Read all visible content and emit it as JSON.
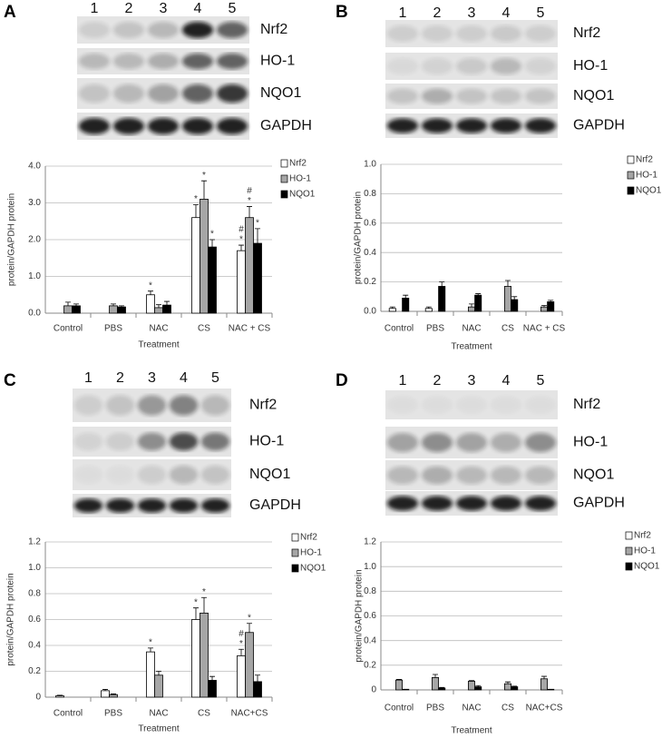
{
  "chart_data": [
    {
      "type": "bar",
      "panel": "A",
      "lanes": [
        "1",
        "2",
        "3",
        "4",
        "5"
      ],
      "blots": [
        "Nrf2",
        "HO-1",
        "NQO1",
        "GAPDH"
      ],
      "x_label": "Treatment",
      "y_label": "protein/GAPDH protein",
      "categories": [
        "Control",
        "PBS",
        "NAC",
        "CS",
        "NAC + CS"
      ],
      "series": [
        {
          "name": "Nrf2",
          "color": "#ffffff",
          "values": [
            0,
            0,
            0.5,
            2.6,
            1.7
          ],
          "errors": [
            0,
            0,
            0.1,
            0.35,
            0.15
          ],
          "annotations": [
            null,
            null,
            [
              "*"
            ],
            [
              "*"
            ],
            [
              "#",
              "*"
            ]
          ]
        },
        {
          "name": "HO-1",
          "color": "#a6a6a6",
          "values": [
            0.2,
            0.2,
            0.15,
            3.1,
            2.6
          ],
          "errors": [
            0.1,
            0.05,
            0.08,
            0.5,
            0.3
          ],
          "annotations": [
            null,
            null,
            null,
            [
              "*"
            ],
            [
              "#",
              "*"
            ]
          ]
        },
        {
          "name": "NQO1",
          "color": "#000000",
          "values": [
            0.2,
            0.17,
            0.22,
            1.8,
            1.9
          ],
          "errors": [
            0.05,
            0.03,
            0.1,
            0.2,
            0.4
          ],
          "annotations": [
            null,
            null,
            null,
            [
              "*"
            ],
            [
              "*"
            ]
          ]
        }
      ],
      "ylim": [
        0,
        4
      ],
      "yticks": [
        {
          "value": 0,
          "label": "0.0"
        },
        {
          "value": 1,
          "label": "1.0"
        },
        {
          "value": 2,
          "label": "2.0"
        },
        {
          "value": 3,
          "label": "3.0"
        },
        {
          "value": 4,
          "label": "4.0"
        }
      ],
      "grid": true,
      "legend": "right"
    },
    {
      "type": "bar",
      "panel": "B",
      "lanes": [
        "1",
        "2",
        "3",
        "4",
        "5"
      ],
      "blots": [
        "Nrf2",
        "HO-1",
        "NQO1",
        "GAPDH"
      ],
      "x_label": "Treatment",
      "y_label": "protein/GAPDH protein",
      "categories": [
        "Control",
        "PBS",
        "NAC",
        "CS",
        "NAC + CS"
      ],
      "series": [
        {
          "name": "Nrf2",
          "color": "#ffffff",
          "values": [
            0.02,
            0.02,
            0,
            0,
            0
          ],
          "errors": [
            0.01,
            0.01,
            0,
            0,
            0
          ]
        },
        {
          "name": "HO-1",
          "color": "#a6a6a6",
          "values": [
            0,
            0,
            0.03,
            0.17,
            0.03
          ],
          "errors": [
            0,
            0,
            0.02,
            0.04,
            0.01
          ]
        },
        {
          "name": "NQO1",
          "color": "#000000",
          "values": [
            0.09,
            0.17,
            0.11,
            0.08,
            0.065
          ],
          "errors": [
            0.02,
            0.03,
            0.01,
            0.02,
            0.01
          ]
        }
      ],
      "ylim": [
        0,
        1
      ],
      "yticks": [
        {
          "value": 0,
          "label": "0.0"
        },
        0.2,
        0.4,
        0.6,
        0.8,
        {
          "value": 1,
          "label": "1.0"
        }
      ],
      "grid": true,
      "legend": "right"
    },
    {
      "type": "bar",
      "panel": "C",
      "lanes": [
        "1",
        "2",
        "3",
        "4",
        "5"
      ],
      "blots": [
        "Nrf2",
        "HO-1",
        "NQO1",
        "GAPDH"
      ],
      "x_label": "Treatment",
      "y_label": "protein/GAPDH protein",
      "categories": [
        "Control",
        "PBS",
        "NAC",
        "CS",
        "NAC+CS"
      ],
      "series": [
        {
          "name": "Nrf2",
          "color": "#ffffff",
          "values": [
            0.01,
            0.05,
            0.35,
            0.6,
            0.32
          ],
          "errors": [
            0.005,
            0.01,
            0.03,
            0.09,
            0.05
          ],
          "annotations": [
            null,
            null,
            [
              "*"
            ],
            [
              "*"
            ],
            [
              "#",
              "*"
            ]
          ]
        },
        {
          "name": "HO-1",
          "color": "#a6a6a6",
          "values": [
            0,
            0.02,
            0.17,
            0.65,
            0.5
          ],
          "errors": [
            0,
            0.005,
            0.03,
            0.12,
            0.07
          ],
          "annotations": [
            null,
            null,
            null,
            [
              "*"
            ],
            [
              "*"
            ]
          ]
        },
        {
          "name": "NQO1",
          "color": "#000000",
          "values": [
            0,
            0,
            0,
            0.13,
            0.12
          ],
          "errors": [
            0,
            0,
            0,
            0.03,
            0.05
          ]
        }
      ],
      "ylim": [
        0,
        1.2
      ],
      "yticks": [
        0,
        0.2,
        0.4,
        0.6,
        0.8,
        {
          "value": 1,
          "label": "1.0"
        },
        1.2
      ],
      "grid": true,
      "legend": "right"
    },
    {
      "type": "bar",
      "panel": "D",
      "lanes": [
        "1",
        "2",
        "3",
        "4",
        "5"
      ],
      "blots": [
        "Nrf2",
        "HO-1",
        "NQO1",
        "GAPDH"
      ],
      "x_label": "Treatment",
      "y_label": "protein/GAPDH protein",
      "categories": [
        "Control",
        "PBS",
        "NAC",
        "CS",
        "NAC+CS"
      ],
      "series": [
        {
          "name": "Nrf2",
          "color": "#ffffff",
          "values": [
            0,
            0,
            0,
            0,
            0
          ],
          "errors": [
            0,
            0,
            0,
            0,
            0
          ]
        },
        {
          "name": "HO-1",
          "color": "#a6a6a6",
          "values": [
            0.08,
            0.1,
            0.07,
            0.05,
            0.09
          ],
          "errors": [
            0.005,
            0.025,
            0.005,
            0.015,
            0.02
          ]
        },
        {
          "name": "NQO1",
          "color": "#000000",
          "values": [
            0.005,
            0.015,
            0.025,
            0.025,
            0.005
          ],
          "errors": [
            0,
            0.005,
            0.01,
            0.005,
            0
          ]
        }
      ],
      "ylim": [
        0,
        1.2
      ],
      "yticks": [
        0,
        0.2,
        0.4,
        0.6,
        0.8,
        {
          "value": 1,
          "label": "1.0"
        },
        1.2
      ],
      "grid": true,
      "legend": "right"
    }
  ]
}
